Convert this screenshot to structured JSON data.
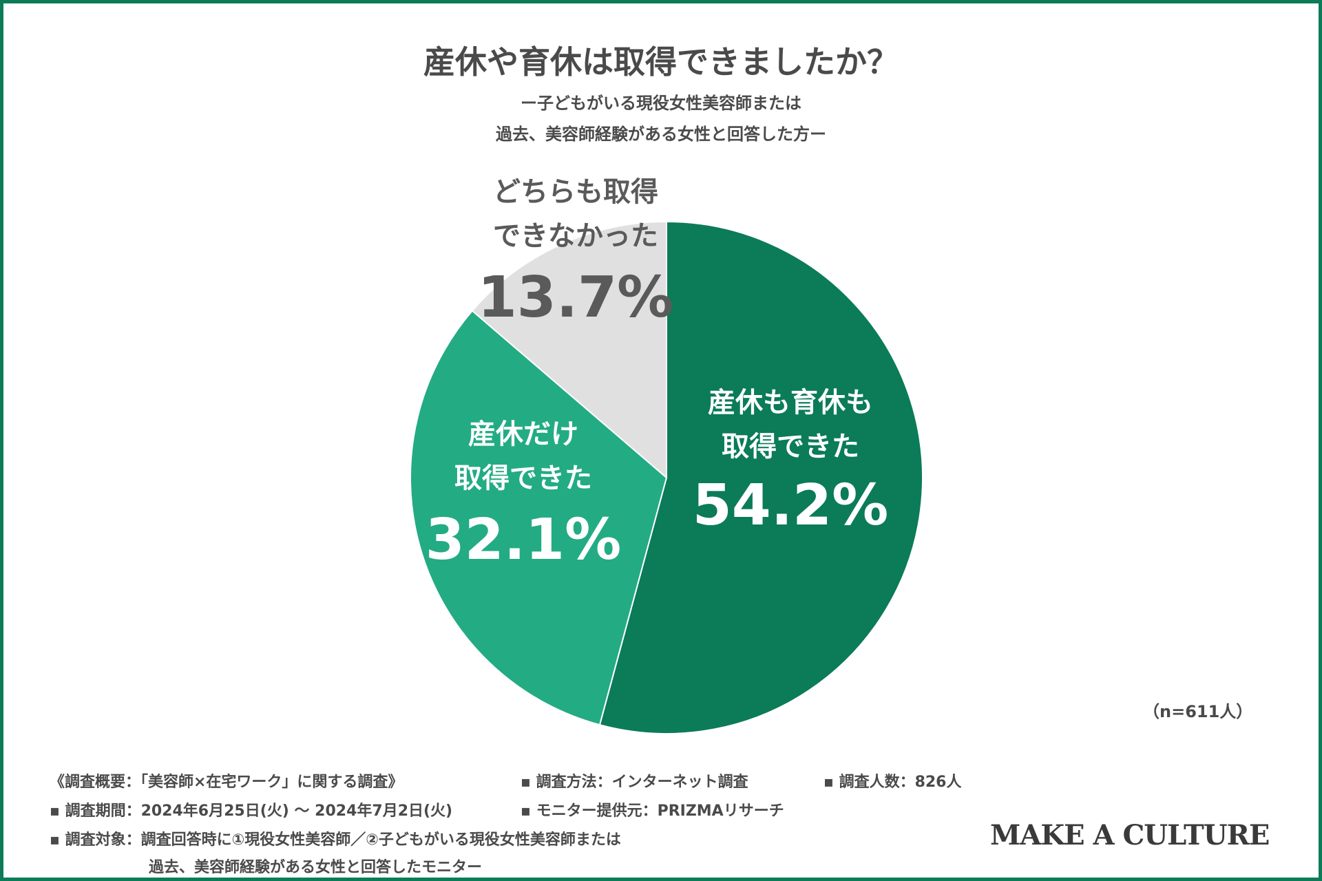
{
  "title": "産休や育休は取得できましたか？",
  "subtitle_lines": [
    "ー子どもがいる現役女性美容師または",
    "過去、美容師経験がある女性と回答した方ー"
  ],
  "n_label": "（n=611人）",
  "notes": {
    "overview": "《調査概要：「美容師×在宅ワーク」に関する調査》",
    "method": "▪ 調査方法：インターネット調査",
    "count": "▪ 調査人数：826人",
    "period": "▪ 調査期間：2024年6月25日(火) 〜 2024年7月2日(火)",
    "provider": "▪ モニター提供元：PRIZMAリサーチ",
    "target_1": "▪ 調査対象：調査回答時に①現役女性美容師／②子どもがいる現役女性美容師または",
    "target_2": "過去、美容師経験がある女性と回答したモニター"
  },
  "logo": "MAKE A CULTURE",
  "chart_data": {
    "type": "pie",
    "title": "産休や育休は取得できましたか？",
    "slices": [
      {
        "label_lines": [
          "産休も育休も",
          "取得できた"
        ],
        "value": 54.2,
        "display": "54.2%",
        "color": "#0b7b58",
        "text_color": "#ffffff"
      },
      {
        "label_lines": [
          "産休だけ",
          "取得できた"
        ],
        "value": 32.1,
        "display": "32.1%",
        "color": "#23ab84",
        "text_color": "#ffffff"
      },
      {
        "label_lines": [
          "どちらも取得",
          "できなかった"
        ],
        "value": 13.7,
        "display": "13.7%",
        "color": "#e0e0e0",
        "text_color": "#5a5a5a"
      }
    ],
    "start": "12 o'clock",
    "direction": "clockwise",
    "legend": "none"
  }
}
